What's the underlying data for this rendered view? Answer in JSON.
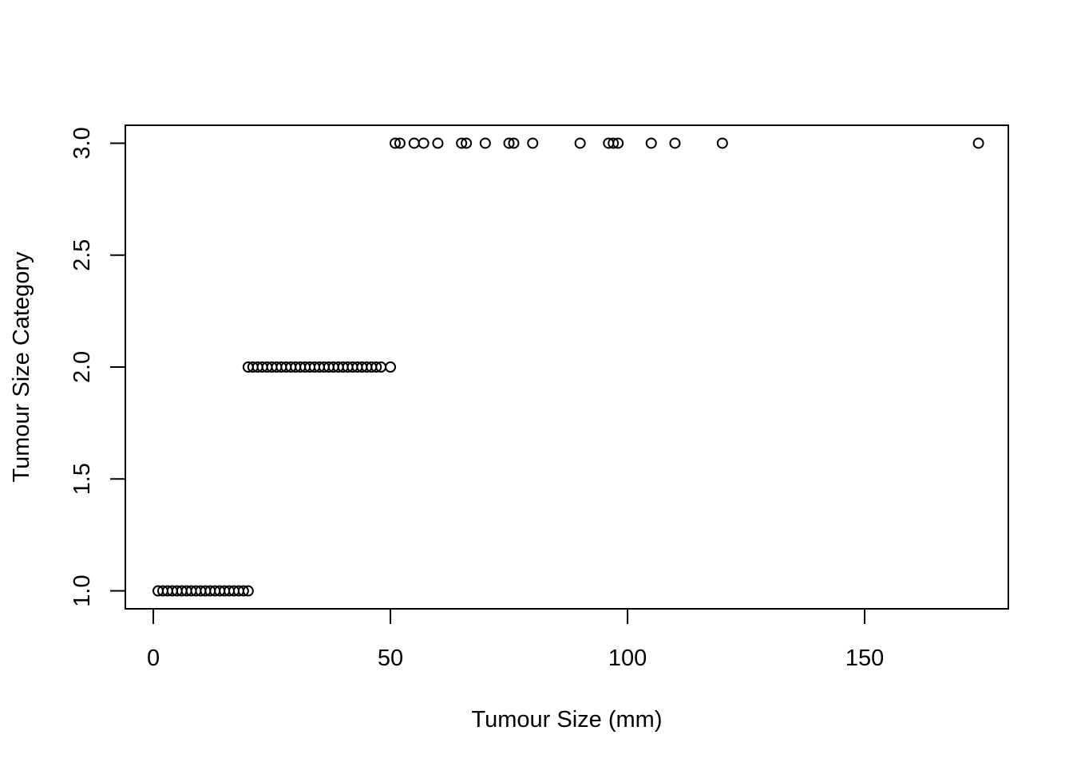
{
  "chart_data": {
    "type": "scatter",
    "title": "",
    "xlabel": "Tumour Size (mm)",
    "ylabel": "Tumour Size Category",
    "xlim": [
      -5.9,
      180.3
    ],
    "ylim": [
      0.92,
      3.08
    ],
    "xticks": [
      0,
      50,
      100,
      150
    ],
    "xtick_labels": [
      "0",
      "50",
      "100",
      "150"
    ],
    "yticks": [
      1.0,
      1.5,
      2.0,
      2.5,
      3.0
    ],
    "ytick_labels": [
      "1.0",
      "1.5",
      "2.0",
      "2.5",
      "3.0"
    ],
    "grid": false,
    "legend": "none",
    "marker": "open-circle",
    "color": "#000000",
    "series": [
      {
        "x": [
          1,
          2,
          3,
          4,
          5,
          6,
          7,
          8,
          9,
          10,
          11,
          12,
          13,
          14,
          15,
          16,
          17,
          18,
          19,
          20,
          20,
          21,
          22,
          23,
          24,
          25,
          26,
          27,
          28,
          29,
          30,
          31,
          32,
          33,
          34,
          35,
          36,
          37,
          38,
          39,
          40,
          41,
          42,
          43,
          44,
          45,
          46,
          47,
          48,
          50,
          51,
          52,
          55,
          57,
          60,
          65,
          66,
          70,
          75,
          76,
          80,
          90,
          96,
          97,
          98,
          105,
          110,
          120,
          174
        ],
        "y": [
          1,
          1,
          1,
          1,
          1,
          1,
          1,
          1,
          1,
          1,
          1,
          1,
          1,
          1,
          1,
          1,
          1,
          1,
          1,
          1,
          2,
          2,
          2,
          2,
          2,
          2,
          2,
          2,
          2,
          2,
          2,
          2,
          2,
          2,
          2,
          2,
          2,
          2,
          2,
          2,
          2,
          2,
          2,
          2,
          2,
          2,
          2,
          2,
          2,
          2,
          3,
          3,
          3,
          3,
          3,
          3,
          3,
          3,
          3,
          3,
          3,
          3,
          3,
          3,
          3,
          3,
          3,
          3,
          3
        ]
      }
    ]
  }
}
